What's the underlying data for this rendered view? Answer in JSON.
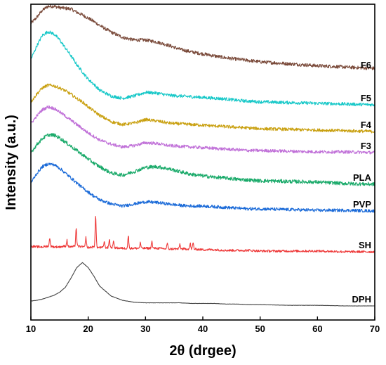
{
  "chart_data": {
    "type": "line",
    "title": "",
    "xlabel": "2θ (drgee)",
    "ylabel": "Intensity (a.u.)",
    "xlim": [
      10,
      70
    ],
    "xticks": [
      10,
      20,
      30,
      40,
      50,
      60,
      70
    ],
    "y_ticks_shown": false,
    "grid": false,
    "legend": "labels at right end of each trace",
    "x": [
      10,
      11,
      12,
      13,
      14,
      15,
      16,
      17,
      18,
      19,
      20,
      21,
      22,
      24,
      26,
      28,
      30,
      32,
      34,
      36,
      38,
      40,
      42,
      44,
      46,
      48,
      50,
      55,
      60,
      65,
      70
    ],
    "series": [
      {
        "name": "F6",
        "color": "#7a4a3a",
        "values": [
          73,
          82,
          93,
          99,
          99,
          97,
          96,
          95,
          90,
          86,
          81,
          76,
          70,
          60,
          52,
          48,
          48,
          45,
          40,
          34,
          30,
          27,
          24,
          21,
          19,
          17,
          15,
          12,
          9,
          7,
          5
        ],
        "noise": 2.6
      },
      {
        "name": "F5",
        "color": "#17c8c8",
        "values": [
          62,
          80,
          95,
          100,
          97,
          89,
          78,
          67,
          55,
          45,
          35,
          28,
          20,
          12,
          9,
          12,
          17,
          16,
          13,
          12,
          11,
          10,
          9,
          8,
          6,
          5,
          4,
          3,
          2,
          1,
          0
        ],
        "noise": 2.2
      },
      {
        "name": "F4",
        "color": "#c9a010",
        "values": [
          42,
          53,
          62,
          66,
          65,
          62,
          58,
          53,
          47,
          42,
          35,
          29,
          23,
          14,
          10,
          12,
          17,
          15,
          12,
          11,
          10,
          9,
          8,
          7,
          6,
          5,
          4,
          3,
          2,
          1,
          0
        ],
        "noise": 2.2
      },
      {
        "name": "F3",
        "color": "#c070d8",
        "values": [
          41,
          52,
          61,
          65,
          63,
          58,
          52,
          46,
          40,
          34,
          28,
          23,
          18,
          12,
          8,
          10,
          14,
          13,
          10,
          9,
          8,
          7,
          6,
          5,
          4,
          3,
          3,
          2,
          1,
          1,
          0
        ],
        "noise": 2.2
      },
      {
        "name": "PLA",
        "color": "#1aaa6a",
        "values": [
          45,
          56,
          65,
          70,
          70,
          66,
          60,
          54,
          48,
          42,
          36,
          30,
          25,
          16,
          13,
          18,
          24,
          25,
          22,
          18,
          14,
          12,
          10,
          9,
          7,
          6,
          5,
          4,
          3,
          1,
          0
        ],
        "noise": 2.6
      },
      {
        "name": "PVP",
        "color": "#1a6ad8",
        "values": [
          40,
          53,
          63,
          67,
          66,
          61,
          54,
          47,
          40,
          33,
          27,
          21,
          16,
          10,
          7,
          10,
          13,
          12,
          10,
          8,
          7,
          7,
          6,
          5,
          4,
          3,
          3,
          2,
          1,
          1,
          0
        ],
        "noise": 2.2
      },
      {
        "name": "SH",
        "color": "#ee3a3a",
        "values": [
          8,
          7,
          7,
          8,
          7,
          7,
          8,
          7,
          8,
          7,
          6,
          7,
          6,
          6,
          5,
          5,
          5,
          5,
          4,
          4,
          4,
          3,
          3,
          2,
          2,
          2,
          1,
          1,
          1,
          0,
          0
        ],
        "noise": 1.6,
        "peaks": [
          {
            "x": 13.3,
            "h": 12
          },
          {
            "x": 16.3,
            "h": 9
          },
          {
            "x": 17.9,
            "h": 26
          },
          {
            "x": 19.6,
            "h": 14
          },
          {
            "x": 21.3,
            "h": 44
          },
          {
            "x": 22.8,
            "h": 9
          },
          {
            "x": 23.7,
            "h": 12
          },
          {
            "x": 24.4,
            "h": 9
          },
          {
            "x": 27.0,
            "h": 18
          },
          {
            "x": 29.1,
            "h": 8
          },
          {
            "x": 31.1,
            "h": 10
          },
          {
            "x": 33.8,
            "h": 8
          },
          {
            "x": 36.0,
            "h": 7
          },
          {
            "x": 37.8,
            "h": 8
          },
          {
            "x": 38.3,
            "h": 9
          }
        ]
      },
      {
        "name": "DPH",
        "color": "#444444",
        "values": [
          8,
          9,
          11,
          14,
          17,
          22,
          30,
          45,
          62,
          70,
          62,
          48,
          32,
          16,
          9,
          6,
          5,
          5,
          5,
          5,
          4,
          4,
          4,
          3,
          3,
          2,
          2,
          1,
          1,
          0,
          0
        ],
        "noise": 0.2
      }
    ]
  }
}
